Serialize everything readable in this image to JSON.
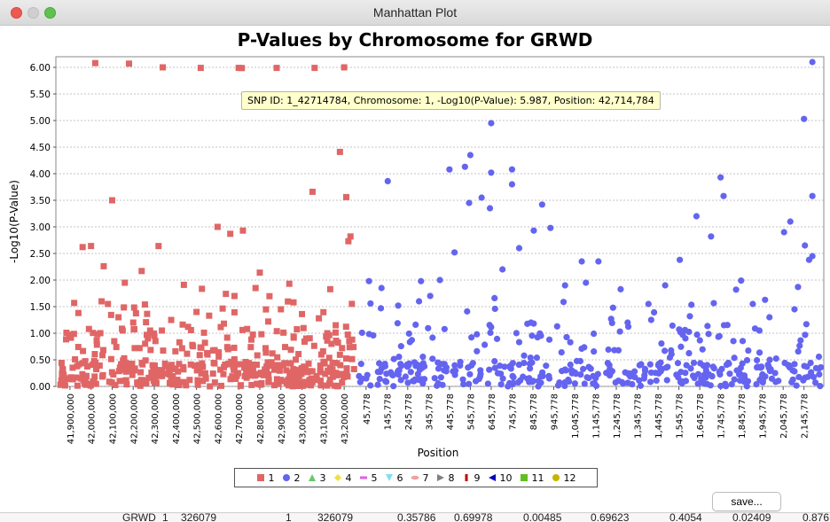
{
  "window": {
    "title": "Manhattan Plot"
  },
  "tooltip": {
    "text": "SNP ID: 1_42714784, Chromosome: 1, -Log10(P-Value): 5.987, Position: 42,714,784"
  },
  "buttons": {
    "save_label": "save..."
  },
  "colors": {
    "chrom1": "#e06666",
    "chrom2": "#6464f0",
    "grid": "#b0b0b0"
  },
  "legend": [
    {
      "label": "1",
      "color": "#e06666",
      "marker": "square"
    },
    {
      "label": "2",
      "color": "#6464f0",
      "marker": "circle"
    },
    {
      "label": "3",
      "color": "#66cc66",
      "marker": "triangle-up"
    },
    {
      "label": "4",
      "color": "#f0e040",
      "marker": "diamond"
    },
    {
      "label": "5",
      "color": "#e060e0",
      "marker": "bar"
    },
    {
      "label": "6",
      "color": "#80e0f0",
      "marker": "triangle-down"
    },
    {
      "label": "7",
      "color": "#f0a0a0",
      "marker": "ellipse"
    },
    {
      "label": "8",
      "color": "#808080",
      "marker": "triangle-right"
    },
    {
      "label": "9",
      "color": "#c00000",
      "marker": "bar-vertical"
    },
    {
      "label": "10",
      "color": "#0000c0",
      "marker": "triangle-left"
    },
    {
      "label": "11",
      "color": "#60c020",
      "marker": "square"
    },
    {
      "label": "12",
      "color": "#c8b400",
      "marker": "circle"
    }
  ],
  "bottom_row": [
    "GRWD",
    "1",
    "326079",
    "1",
    "326079",
    "0.35786",
    "0.69978",
    "0.00485",
    "0.69623",
    "0.4054",
    "0.02409",
    "0.876"
  ],
  "chart_data": {
    "type": "scatter",
    "title": "P-Values by Chromosome for GRWD",
    "xlabel": "Position",
    "ylabel": "-Log10(P-Value)",
    "ylim": [
      0,
      6.2
    ],
    "y_ticks": [
      "0.00",
      "0.50",
      "1.00",
      "1.50",
      "2.00",
      "2.50",
      "3.00",
      "3.50",
      "4.00",
      "4.50",
      "5.00",
      "5.50",
      "6.00"
    ],
    "grid": true,
    "legend_position": "bottom",
    "x_ticks_chrom1": [
      "41,900,000",
      "42,000,000",
      "42,100,000",
      "42,200,000",
      "42,300,000",
      "42,400,000",
      "42,500,000",
      "42,600,000",
      "42,700,000",
      "42,800,000",
      "42,900,000",
      "43,000,000",
      "43,100,000",
      "43,200,000"
    ],
    "x_ticks_chrom2": [
      "45,778",
      "145,778",
      "245,778",
      "345,778",
      "445,778",
      "545,778",
      "645,778",
      "745,778",
      "845,778",
      "945,778",
      "1,045,778",
      "1,145,778",
      "1,245,778",
      "1,345,778",
      "1,445,778",
      "1,545,778",
      "1,645,778",
      "1,745,778",
      "1,845,778",
      "1,945,778",
      "2,045,778",
      "2,145,778"
    ],
    "series": [
      {
        "name": "1",
        "x": [
          42020000,
          42180000,
          42340000,
          42520000,
          42700000,
          42880000,
          43060000,
          43200000,
          42714784,
          43050000,
          43210000,
          42100000,
          42600000,
          42660000,
          42000000,
          41960000,
          42240000,
          42320000,
          42060000,
          42720000,
          42800000,
          42160000,
          42440000,
          43220000,
          42940000,
          42050000,
          42080000,
          42130000,
          42200000,
          42280000,
          42380000,
          42460000,
          42500000,
          42560000,
          42630000,
          42680000,
          42740000,
          42780000,
          42840000,
          42900000,
          42960000,
          43000000,
          43080000,
          43120000,
          43160000,
          43180000,
          43230000,
          41920000,
          41940000,
          41990000,
          42030000,
          42110000,
          42150000,
          42230000,
          42300000,
          42400000,
          42480000,
          42540000,
          42650000,
          42760000,
          42860000,
          42920000,
          43020000,
          43100000,
          43140000,
          43190000
        ],
        "y": [
          6.08,
          6.07,
          6.0,
          5.99,
          5.99,
          5.99,
          5.99,
          6.0,
          5.987,
          3.66,
          3.56,
          3.5,
          3.0,
          2.87,
          2.64,
          2.62,
          2.17,
          2.64,
          2.26,
          2.93,
          2.14,
          1.95,
          1.91,
          2.73,
          1.93,
          1.6,
          1.55,
          1.3,
          1.2,
          1.05,
          1.25,
          1.12,
          1.4,
          1.33,
          1.18,
          1.7,
          1.08,
          1.85,
          1.22,
          1.45,
          1.58,
          1.36,
          1.28,
          1.0,
          1.15,
          4.41,
          2.82,
          1.57,
          1.38,
          1.08,
          0.98,
          0.85,
          1.05,
          0.72,
          0.95,
          0.66,
          0.78,
          0.82,
          0.7,
          0.88,
          0.62,
          0.74,
          0.9,
          0.66,
          0.8,
          0.72
        ]
      },
      {
        "name": "2",
        "x": [
          2185778,
          645778,
          545778,
          745778,
          445778,
          645778,
          745778,
          150000,
          1745778,
          2145778,
          2185778,
          520000,
          540000,
          600000,
          640000,
          890000,
          930000,
          1080000,
          1160000,
          1550000,
          1630000,
          1760000,
          2050000,
          2080000,
          2150000,
          2185778,
          60000,
          120000,
          200000,
          300000,
          400000,
          470000,
          700000,
          780000,
          850000,
          1000000,
          1100000,
          1230000,
          1300000,
          1400000,
          1480000,
          1700000,
          1820000,
          1900000,
          1980000,
          2100000,
          2170000
        ],
        "y": [
          6.1,
          4.95,
          4.35,
          4.08,
          4.08,
          4.02,
          3.8,
          3.86,
          3.93,
          5.03,
          3.58,
          4.13,
          3.45,
          3.55,
          3.35,
          3.42,
          2.98,
          2.35,
          2.35,
          2.38,
          3.2,
          3.58,
          2.9,
          3.1,
          2.65,
          2.45,
          1.98,
          1.85,
          1.52,
          1.6,
          2.0,
          2.52,
          2.2,
          2.6,
          2.93,
          1.9,
          1.95,
          1.48,
          1.2,
          1.55,
          1.9,
          2.82,
          1.82,
          1.55,
          1.3,
          1.45,
          2.38
        ]
      }
    ]
  }
}
